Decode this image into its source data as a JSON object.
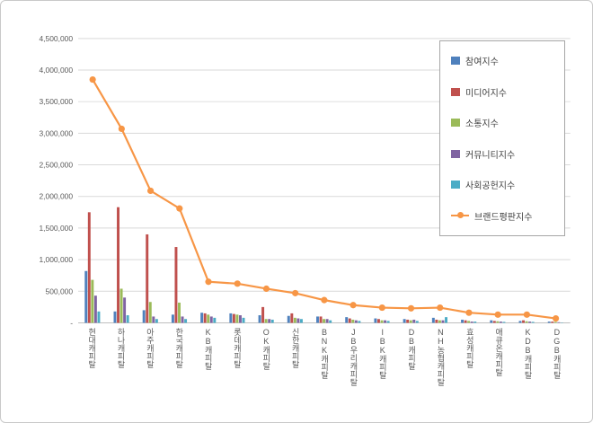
{
  "chart_data": {
    "type": "bar",
    "categories": [
      "현대캐피탈",
      "하나캐피탈",
      "아주캐피탈",
      "한국캐피탈",
      "KB캐피탈",
      "롯데캐피탈",
      "OK캐피탈",
      "신한캐피탈",
      "BNK캐피탈",
      "JB우리캐피탈",
      "IBK캐피탈",
      "DB캐피탈",
      "NH농협캐피탈",
      "효성캐피탈",
      "애큐온캐피탈",
      "KDB캐피탈",
      "DGB캐피탈"
    ],
    "series": [
      {
        "name": "참여지수",
        "type": "bar",
        "color": "#4F81BD",
        "values": [
          820000,
          180000,
          200000,
          130000,
          160000,
          150000,
          120000,
          110000,
          100000,
          90000,
          70000,
          60000,
          80000,
          50000,
          40000,
          30000,
          20000
        ]
      },
      {
        "name": "미디어지수",
        "type": "bar",
        "color": "#C0504D",
        "values": [
          1750000,
          1830000,
          1400000,
          1200000,
          150000,
          140000,
          250000,
          150000,
          100000,
          70000,
          60000,
          50000,
          50000,
          40000,
          30000,
          40000,
          20000
        ]
      },
      {
        "name": "소통지수",
        "type": "bar",
        "color": "#9BBB59",
        "values": [
          680000,
          540000,
          330000,
          320000,
          130000,
          130000,
          60000,
          80000,
          60000,
          50000,
          40000,
          40000,
          40000,
          30000,
          25000,
          25000,
          15000
        ]
      },
      {
        "name": "커뮤니티지수",
        "type": "bar",
        "color": "#8064A2",
        "values": [
          430000,
          400000,
          100000,
          100000,
          100000,
          120000,
          60000,
          70000,
          60000,
          40000,
          40000,
          50000,
          40000,
          20000,
          20000,
          20000,
          10000
        ]
      },
      {
        "name": "사회공헌지수",
        "type": "bar",
        "color": "#4BACC6",
        "values": [
          180000,
          120000,
          60000,
          60000,
          80000,
          80000,
          50000,
          60000,
          40000,
          30000,
          30000,
          30000,
          90000,
          20000,
          15000,
          15000,
          5000
        ]
      },
      {
        "name": "브랜드평판지수",
        "type": "line",
        "color": "#F79646",
        "values": [
          3850000,
          3070000,
          2090000,
          1810000,
          650000,
          620000,
          540000,
          470000,
          360000,
          280000,
          240000,
          230000,
          240000,
          160000,
          130000,
          130000,
          70000
        ]
      }
    ],
    "title": "",
    "xlabel": "",
    "ylabel": "",
    "ylim": [
      0,
      4500000
    ],
    "ytick_step": 500000,
    "ytick_labels": [
      "-",
      "500,000",
      "1,000,000",
      "1,500,000",
      "2,000,000",
      "2,500,000",
      "3,000,000",
      "3,500,000",
      "4,000,000",
      "4,500,000"
    ],
    "grid": true,
    "legend_position": "right-top",
    "style": {
      "grid_color": "#D9D9D9",
      "axis_color": "#BFBFBF",
      "tick_label_color": "#595959",
      "background": "#FFFFFF",
      "border_color": "#C9C9C9",
      "legend_border_color": "#A6A6A6"
    }
  }
}
